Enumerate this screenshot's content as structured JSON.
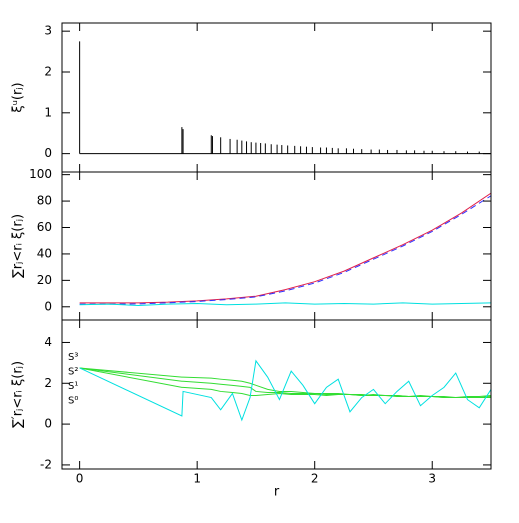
{
  "chart_data": [
    {
      "type": "spike",
      "ylabel": "ξᵘ(rⱼ)",
      "color": "#000000",
      "x": [
        0,
        0.87,
        0.88,
        1.12,
        1.13,
        1.2,
        1.28,
        1.34,
        1.38,
        1.42,
        1.46,
        1.5,
        1.54,
        1.58,
        1.63,
        1.68,
        1.72,
        1.77,
        1.83,
        1.88,
        1.93,
        1.98,
        2.05,
        2.1,
        2.15,
        2.2,
        2.27,
        2.33,
        2.4,
        2.48,
        2.55,
        2.62,
        2.7,
        2.78,
        2.85,
        2.93,
        3.0,
        3.1,
        3.2,
        3.3,
        3.4
      ],
      "values": [
        2.75,
        0.65,
        0.6,
        0.45,
        0.43,
        0.4,
        0.36,
        0.34,
        0.32,
        0.3,
        0.28,
        0.27,
        0.26,
        0.25,
        0.23,
        0.22,
        0.21,
        0.2,
        0.19,
        0.18,
        0.17,
        0.16,
        0.15,
        0.15,
        0.14,
        0.13,
        0.13,
        0.12,
        0.11,
        0.1,
        0.1,
        0.09,
        0.09,
        0.08,
        0.08,
        0.07,
        0.07,
        0.06,
        0.06,
        0.05,
        0.05
      ],
      "ylim": [
        -0.45,
        3.2
      ],
      "yticks": [
        0,
        1,
        2,
        3
      ]
    },
    {
      "type": "line",
      "ylabel": "∑rⱼ<rᵢ ξ(rⱼ)",
      "x": [
        0,
        0.25,
        0.5,
        0.75,
        1.0,
        1.25,
        1.5,
        1.75,
        2.0,
        2.25,
        2.5,
        2.75,
        3.0,
        3.25,
        3.5
      ],
      "series": [
        {
          "color": "#e0204a",
          "dashed": false,
          "values": [
            3,
            3,
            3,
            3.5,
            4.5,
            6,
            8,
            13,
            19,
            27,
            37,
            47,
            58,
            71,
            86
          ]
        },
        {
          "color": "#3030ff",
          "dashed": true,
          "values": [
            2,
            2,
            2.2,
            3,
            4,
            5.5,
            7.5,
            12,
            18,
            26,
            36,
            46,
            57,
            70,
            84
          ]
        },
        {
          "color": "#00e0e0",
          "dashed": false,
          "values": [
            1.5,
            2,
            1,
            2,
            2.5,
            1.5,
            2,
            3,
            2,
            2.5,
            2,
            3,
            2,
            2.5,
            3
          ]
        }
      ],
      "ylim": [
        -10,
        102
      ],
      "yticks": [
        0,
        20,
        40,
        60,
        80,
        100
      ]
    },
    {
      "type": "line",
      "ylabel": "∑′rⱼ<rᵢ ξ(rⱼ)",
      "xlabel": "r",
      "legend": "upper left",
      "x": [
        0,
        0.87,
        0.88,
        1.12,
        1.2,
        1.3,
        1.38,
        1.45,
        1.5,
        1.6,
        1.7,
        1.8,
        1.9,
        2.0,
        2.1,
        2.2,
        2.3,
        2.4,
        2.5,
        2.6,
        2.7,
        2.8,
        2.9,
        3.0,
        3.1,
        3.2,
        3.3,
        3.4,
        3.5
      ],
      "series": [
        {
          "name": "S³",
          "color": "#33dd33",
          "dashed": false,
          "values": [
            2.75,
            2.3,
            2.3,
            2.25,
            2.2,
            2.15,
            2.1,
            2.0,
            1.9,
            1.7,
            1.6,
            1.6,
            1.55,
            1.5,
            1.5,
            1.5,
            1.45,
            1.45,
            1.4,
            1.4,
            1.4,
            1.35,
            1.35,
            1.35,
            1.3,
            1.3,
            1.3,
            1.3,
            1.3
          ]
        },
        {
          "name": "S²",
          "color": "#33dd33",
          "dashed": false,
          "values": [
            2.75,
            2.1,
            2.1,
            2.0,
            1.95,
            1.9,
            1.85,
            1.8,
            1.6,
            1.55,
            1.55,
            1.5,
            1.5,
            1.5,
            1.45,
            1.45,
            1.45,
            1.4,
            1.4,
            1.4,
            1.35,
            1.35,
            1.35,
            1.35,
            1.3,
            1.3,
            1.3,
            1.3,
            1.35
          ]
        },
        {
          "name": "S¹",
          "color": "#33dd33",
          "dashed": false,
          "values": [
            2.75,
            1.8,
            1.8,
            1.7,
            1.6,
            1.55,
            1.5,
            1.4,
            1.4,
            1.45,
            1.5,
            1.45,
            1.45,
            1.45,
            1.4,
            1.45,
            1.45,
            1.4,
            1.45,
            1.4,
            1.4,
            1.35,
            1.4,
            1.35,
            1.35,
            1.3,
            1.35,
            1.35,
            1.4
          ]
        },
        {
          "name": "S⁰",
          "color": "#00e0e0",
          "dashed": false,
          "values": [
            2.75,
            0.4,
            1.6,
            1.3,
            0.7,
            1.5,
            0.2,
            1.3,
            3.1,
            2.3,
            1.2,
            2.6,
            1.9,
            1.0,
            1.8,
            2.2,
            0.6,
            1.3,
            1.7,
            1.0,
            1.6,
            2.1,
            0.9,
            1.4,
            1.8,
            2.5,
            1.2,
            0.8,
            1.7
          ]
        }
      ],
      "xlim": [
        -0.15,
        3.5
      ],
      "xticks": [
        0,
        1,
        2,
        3
      ],
      "ylim": [
        -2.2,
        5.1
      ],
      "yticks": [
        -2,
        0,
        2,
        4
      ]
    }
  ]
}
